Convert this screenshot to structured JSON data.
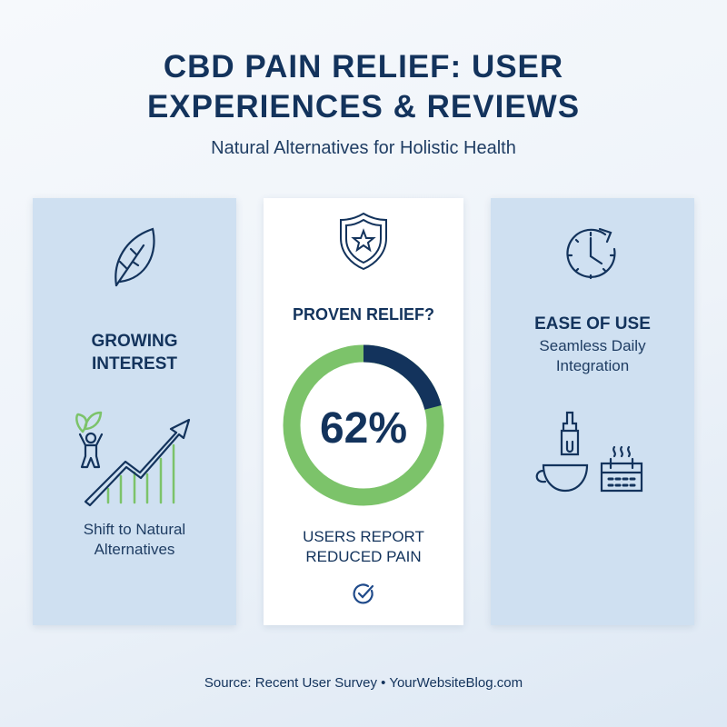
{
  "header": {
    "title_line1": "CBD PAIN RELIEF: USER",
    "title_line2": "EXPERIENCES & REVIEWS",
    "subtitle": "Natural Alternatives for Holistic Health"
  },
  "cards": [
    {
      "icon": "leaf-icon",
      "heading_line1": "GROWING",
      "heading_line2": "INTEREST",
      "illustration": "growth-chart-person-icon",
      "caption_line1": "Shift to Natural",
      "caption_line2": "Alternatives"
    },
    {
      "icon": "shield-star-icon",
      "heading": "PROVEN RELIEF?",
      "stat": "62%",
      "dark_segment_fraction": 0.21,
      "caption_line1": "USERS REPORT",
      "caption_line2": "REDUCED PAIN",
      "footer_icon": "check-circle-icon"
    },
    {
      "icon": "clock-icon",
      "heading": "EASE OF USE",
      "caption_line1": "Seamless Daily",
      "caption_line2": "Integration",
      "illustration": "dropper-cup-calendar-icon"
    }
  ],
  "footer": {
    "source": "Source: Recent User Survey",
    "separator": "•",
    "site": "YourWebsiteBlog.com"
  },
  "colors": {
    "navy": "#13335c",
    "green": "#7cc36a",
    "card_blue": "#cfe0f1"
  }
}
